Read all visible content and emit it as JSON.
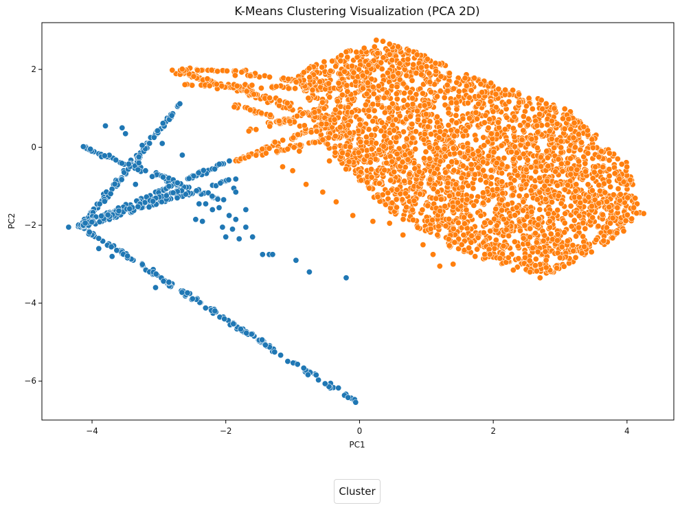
{
  "chart_data": {
    "type": "scatter",
    "title": "K-Means Clustering Visualization (PCA 2D)",
    "xlabel": "PC1",
    "ylabel": "PC2",
    "xlim": [
      -4.75,
      4.7
    ],
    "ylim": [
      -7.0,
      3.2
    ],
    "xticks": [
      -4,
      -2,
      0,
      2,
      4
    ],
    "yticks": [
      -6,
      -4,
      -2,
      0,
      2
    ],
    "grid": false,
    "legend": {
      "title": "Cluster",
      "placement": "bottom-center",
      "entries": []
    },
    "colors": {
      "cluster_0": "#1f77b4",
      "cluster_1": "#ff7f0e"
    },
    "series": [
      {
        "color": "#1f77b4",
        "segments": [
          {
            "from": [
              -4.2,
              -2.0
            ],
            "to": [
              -0.05,
              -6.55
            ],
            "count": 150,
            "spread": 0.05
          },
          {
            "from": [
              -4.2,
              -2.05
            ],
            "to": [
              -2.65,
              1.2
            ],
            "count": 60,
            "spread": 0.04
          },
          {
            "from": [
              -4.15,
              -2.05
            ],
            "to": [
              -2.9,
              0.6
            ],
            "count": 45,
            "spread": 0.05
          },
          {
            "from": [
              -4.2,
              0.05
            ],
            "to": [
              -2.0,
              -1.4
            ],
            "count": 70,
            "spread": 0.05
          },
          {
            "from": [
              -4.15,
              -2.0
            ],
            "to": [
              -1.95,
              -0.35
            ],
            "count": 70,
            "spread": 0.04
          },
          {
            "from": [
              -4.15,
              -2.05
            ],
            "to": [
              -1.85,
              -0.8
            ],
            "count": 60,
            "spread": 0.04
          },
          {
            "from": [
              -4.15,
              -2.0
            ],
            "to": [
              -2.6,
              -1.05
            ],
            "count": 40,
            "spread": 0.05
          }
        ],
        "points": [
          [
            -4.35,
            -2.05
          ],
          [
            -3.8,
            0.55
          ],
          [
            -3.55,
            0.5
          ],
          [
            -3.5,
            0.35
          ],
          [
            -3.3,
            -0.4
          ],
          [
            -3.2,
            -0.6
          ],
          [
            -3.1,
            -0.75
          ],
          [
            -3.35,
            -0.95
          ],
          [
            -2.95,
            0.1
          ],
          [
            -2.65,
            -0.2
          ],
          [
            -2.55,
            -0.8
          ],
          [
            -2.4,
            -1.45
          ],
          [
            -2.3,
            -1.45
          ],
          [
            -2.45,
            -1.85
          ],
          [
            -2.35,
            -1.9
          ],
          [
            -2.1,
            -1.55
          ],
          [
            -1.95,
            -1.75
          ],
          [
            -1.85,
            -1.85
          ],
          [
            -2.05,
            -2.05
          ],
          [
            -2.0,
            -2.3
          ],
          [
            -1.9,
            -2.1
          ],
          [
            -1.8,
            -2.35
          ],
          [
            -1.7,
            -2.05
          ],
          [
            -1.6,
            -2.3
          ],
          [
            -1.45,
            -2.75
          ],
          [
            -1.35,
            -2.75
          ],
          [
            -1.3,
            -2.75
          ],
          [
            -0.95,
            -2.9
          ],
          [
            -0.75,
            -3.2
          ],
          [
            -0.2,
            -3.35
          ],
          [
            -3.05,
            -3.6
          ],
          [
            -2.85,
            -1.0
          ],
          [
            -3.3,
            -0.25
          ],
          [
            -3.25,
            0.05
          ],
          [
            -2.2,
            -1.6
          ],
          [
            -1.88,
            -1.05
          ],
          [
            -1.85,
            -1.15
          ],
          [
            -1.7,
            -1.6
          ],
          [
            -3.9,
            -2.6
          ],
          [
            -3.7,
            -2.8
          ]
        ]
      },
      {
        "color": "#ff7f0e",
        "blobs": [
          {
            "poly": [
              [
                -0.15,
                2.5
              ],
              [
                0.5,
                2.7
              ],
              [
                1.6,
                1.9
              ],
              [
                3.1,
                1.0
              ],
              [
                4.0,
                -0.4
              ],
              [
                4.2,
                -1.7
              ],
              [
                3.9,
                -2.3
              ],
              [
                2.8,
                -3.3
              ],
              [
                1.5,
                -2.7
              ],
              [
                0.4,
                -1.6
              ],
              [
                -0.15,
                -0.7
              ],
              [
                -0.6,
                0.3
              ],
              [
                -0.95,
                1.9
              ]
            ],
            "count": 2800
          }
        ],
        "segments": [
          {
            "from": [
              -2.7,
              1.95
            ],
            "to": [
              -0.3,
              0.6
            ],
            "count": 70,
            "spread": 0.06
          },
          {
            "from": [
              -2.7,
              1.95
            ],
            "to": [
              -1.0,
              1.1
            ],
            "count": 45,
            "spread": 0.06
          },
          {
            "from": [
              -2.6,
              1.6
            ],
            "to": [
              -0.3,
              1.5
            ],
            "count": 55,
            "spread": 0.06
          },
          {
            "from": [
              -2.7,
              2.0
            ],
            "to": [
              -1.7,
              1.95
            ],
            "count": 25,
            "spread": 0.04
          },
          {
            "from": [
              -1.85,
              -0.35
            ],
            "to": [
              -0.1,
              0.9
            ],
            "count": 55,
            "spread": 0.05
          },
          {
            "from": [
              -1.75,
              -0.3
            ],
            "to": [
              0.0,
              0.4
            ],
            "count": 50,
            "spread": 0.05
          },
          {
            "from": [
              -2.0,
              1.9
            ],
            "to": [
              -0.2,
              1.6
            ],
            "count": 35,
            "spread": 0.05
          },
          {
            "from": [
              -1.7,
              0.4
            ],
            "to": [
              -0.5,
              1.0
            ],
            "count": 30,
            "spread": 0.06
          },
          {
            "from": [
              -1.9,
              1.1
            ],
            "to": [
              -0.6,
              0.4
            ],
            "count": 30,
            "spread": 0.06
          }
        ],
        "points": [
          [
            -2.8,
            1.98
          ],
          [
            -0.2,
            2.45
          ],
          [
            0.25,
            2.75
          ],
          [
            0.35,
            2.72
          ],
          [
            0.45,
            2.65
          ],
          [
            4.15,
            -1.45
          ],
          [
            4.1,
            -1.55
          ],
          [
            4.25,
            -1.7
          ],
          [
            3.95,
            -2.15
          ],
          [
            3.85,
            -2.2
          ],
          [
            3.75,
            -1.95
          ],
          [
            3.65,
            -2.4
          ],
          [
            2.95,
            -3.1
          ],
          [
            2.7,
            -3.35
          ],
          [
            2.55,
            -3.2
          ],
          [
            2.3,
            -3.15
          ],
          [
            2.1,
            -2.85
          ],
          [
            1.95,
            -2.75
          ],
          [
            1.4,
            -3.0
          ],
          [
            1.2,
            -3.05
          ],
          [
            1.1,
            -2.75
          ],
          [
            0.95,
            -2.5
          ],
          [
            0.65,
            -2.25
          ],
          [
            0.45,
            -1.95
          ],
          [
            0.2,
            -1.9
          ],
          [
            -0.1,
            -1.75
          ],
          [
            -0.35,
            -1.4
          ],
          [
            -0.55,
            -1.15
          ],
          [
            -0.8,
            -0.95
          ],
          [
            -1.0,
            -0.6
          ],
          [
            -1.15,
            -0.5
          ],
          [
            -0.9,
            -0.1
          ],
          [
            -0.45,
            -0.35
          ]
        ]
      }
    ]
  }
}
